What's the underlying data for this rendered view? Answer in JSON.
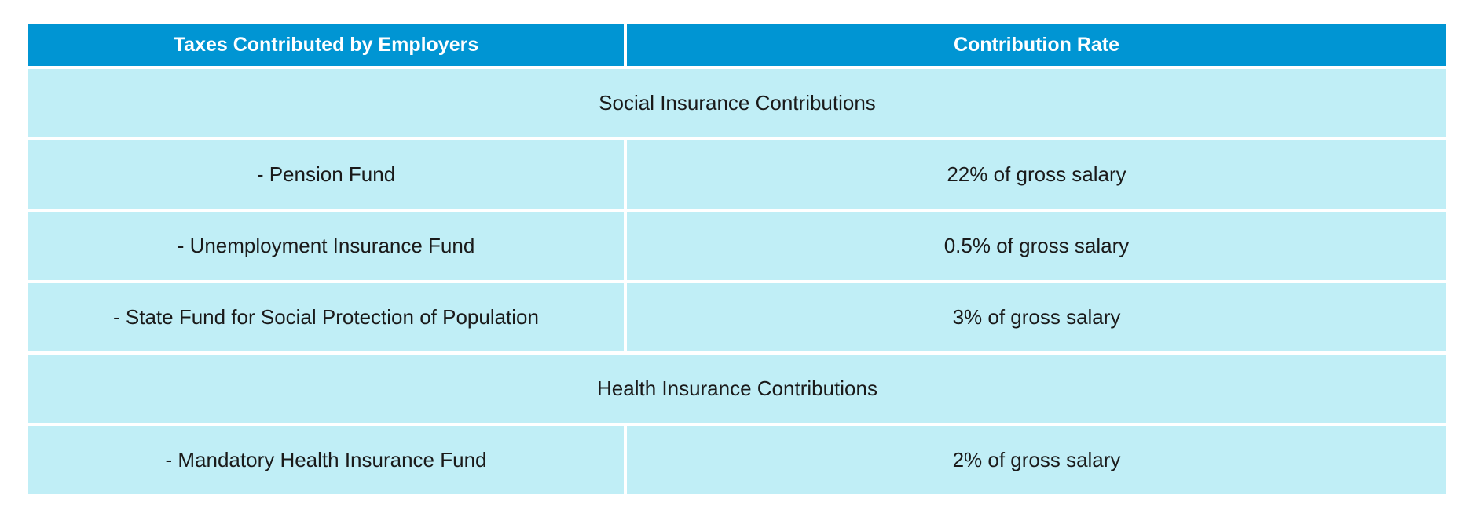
{
  "header": {
    "col1": "Taxes Contributed by Employers",
    "col2": "Contribution Rate"
  },
  "sections": [
    {
      "title": "Social Insurance Contributions",
      "rows": [
        {
          "name": "- Pension Fund",
          "rate": "22% of gross salary"
        },
        {
          "name": "- Unemployment Insurance Fund",
          "rate": "0.5% of gross salary"
        },
        {
          "name": "- State Fund for Social Protection of Population",
          "rate": "3% of gross salary"
        }
      ]
    },
    {
      "title": "Health Insurance Contributions",
      "rows": [
        {
          "name": "- Mandatory Health Insurance Fund",
          "rate": "2% of gross salary"
        }
      ]
    }
  ],
  "colors": {
    "header_bg": "#0095D3",
    "row_bg": "#C0EEF6"
  }
}
